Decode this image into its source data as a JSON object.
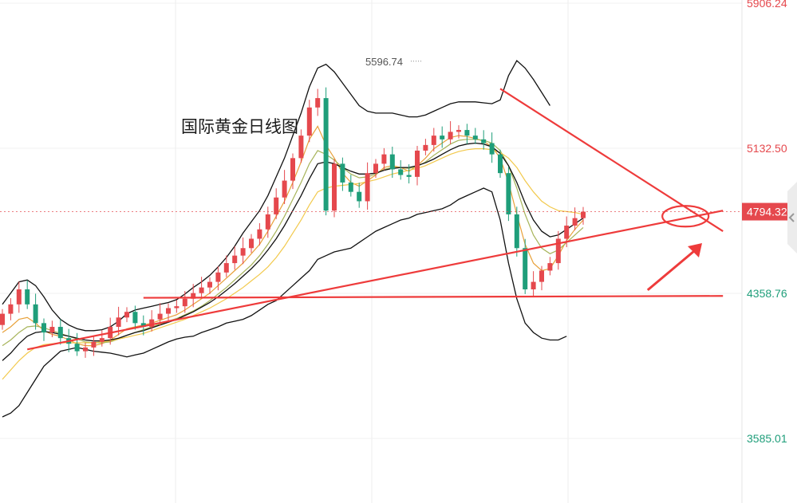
{
  "chart_data": {
    "type": "candlestick",
    "title": "国际黄金日线图",
    "xlabel": "",
    "ylabel": "",
    "y_axis_labels": [
      {
        "value": 5906.24,
        "label": "5906.24",
        "color": "#e5484d"
      },
      {
        "value": 5132.5,
        "label": "5132.50",
        "color": "#e5484d"
      },
      {
        "value": 4358.76,
        "label": "4358.76",
        "color": "#1f9e7a"
      },
      {
        "value": 3585.01,
        "label": "3585.01",
        "color": "#1f9e7a"
      }
    ],
    "current_price": {
      "value": 4794.32,
      "label": "4794.32",
      "color": "#e5484d"
    },
    "high_marker": {
      "value": 5596.74,
      "label": "5596.74"
    },
    "ylim": [
      3200,
      5906.24
    ],
    "up_color": "#e5484d",
    "down_color": "#1f9e7a",
    "closes": [
      4250,
      4300,
      4380,
      4300,
      4200,
      4150,
      4180,
      4120,
      4090,
      4050,
      4070,
      4100,
      4120,
      4180,
      4230,
      4260,
      4200,
      4180,
      4220,
      4250,
      4280,
      4290,
      4330,
      4360,
      4390,
      4420,
      4470,
      4520,
      4560,
      4600,
      4650,
      4700,
      4780,
      4870,
      4960,
      5080,
      5200,
      5350,
      5400,
      4800,
      5050,
      4950,
      4900,
      4850,
      5000,
      5050,
      5100,
      5020,
      4990,
      4980,
      5120,
      5150,
      5200,
      5180,
      5220,
      5230,
      5200,
      5180,
      5160,
      5100,
      5000,
      4780,
      4600,
      4380,
      4420,
      4480,
      4520,
      4650,
      4720,
      4760,
      4794.32
    ],
    "series": [
      {
        "name": "",
        "color": "#e8a13a",
        "values": [
          4150,
          4180,
          4220,
          4230,
          4200,
          4160,
          4140,
          4130,
          4110,
          4090,
          4080,
          4080,
          4090,
          4110,
          4140,
          4170,
          4180,
          4190,
          4200,
          4215,
          4230,
          4245,
          4270,
          4300,
          4330,
          4360,
          4400,
          4440,
          4480,
          4520,
          4570,
          4620,
          4690,
          4770,
          4850,
          4950,
          5060,
          5180,
          5250,
          5150,
          5080,
          5000,
          4950,
          4930,
          4960,
          4990,
          5030,
          5040,
          5030,
          5010,
          5040,
          5080,
          5130,
          5160,
          5190,
          5200,
          5195,
          5185,
          5170,
          5140,
          5080,
          4950,
          4780,
          4620,
          4520,
          4480,
          4490,
          4560,
          4640,
          4700,
          4750
        ]
      },
      {
        "name": "",
        "color": "#a7b45a",
        "values": [
          4080,
          4110,
          4150,
          4180,
          4185,
          4175,
          4160,
          4145,
          4130,
          4115,
          4100,
          4095,
          4095,
          4100,
          4115,
          4135,
          4150,
          4165,
          4180,
          4195,
          4210,
          4225,
          4245,
          4265,
          4290,
          4320,
          4355,
          4390,
          4430,
          4470,
          4510,
          4560,
          4620,
          4690,
          4770,
          4860,
          4950,
          5050,
          5120,
          5100,
          5070,
          5030,
          4995,
          4975,
          4980,
          4995,
          5020,
          5030,
          5030,
          5025,
          5035,
          5060,
          5095,
          5125,
          5155,
          5175,
          5180,
          5180,
          5175,
          5160,
          5120,
          5040,
          4920,
          4780,
          4670,
          4600,
          4570,
          4590,
          4630,
          4670,
          4710
        ]
      },
      {
        "name": "",
        "color": "#f2c94c",
        "values": [
          3900,
          3950,
          4000,
          4040,
          4070,
          4085,
          4090,
          4095,
          4095,
          4095,
          4095,
          4095,
          4100,
          4105,
          4115,
          4125,
          4135,
          4145,
          4160,
          4175,
          4190,
          4205,
          4220,
          4240,
          4260,
          4280,
          4305,
          4330,
          4360,
          4390,
          4425,
          4460,
          4500,
          4550,
          4610,
          4680,
          4750,
          4830,
          4900,
          4920,
          4930,
          4935,
          4940,
          4945,
          4955,
          4965,
          4980,
          4995,
          5005,
          5015,
          5025,
          5040,
          5060,
          5080,
          5100,
          5115,
          5125,
          5130,
          5130,
          5125,
          5110,
          5080,
          5030,
          4960,
          4900,
          4850,
          4820,
          4800,
          4795,
          4790,
          4780
        ]
      },
      {
        "name": "",
        "color": "#111111",
        "values": [
          4000,
          4040,
          4090,
          4130,
          4150,
          4155,
          4150,
          4140,
          4130,
          4120,
          4110,
          4105,
          4105,
          4110,
          4120,
          4135,
          4150,
          4160,
          4175,
          4190,
          4205,
          4220,
          4240,
          4260,
          4285,
          4310,
          4340,
          4375,
          4410,
          4450,
          4490,
          4535,
          4590,
          4650,
          4720,
          4800,
          4880,
          4970,
          5050,
          5060,
          5050,
          5030,
          5010,
          4995,
          4995,
          5000,
          5015,
          5025,
          5030,
          5030,
          5040,
          5055,
          5075,
          5100,
          5125,
          5145,
          5155,
          5160,
          5155,
          5140,
          5105,
          5040,
          4950,
          4840,
          4750,
          4690,
          4660,
          4670,
          4700,
          4730,
          4760
        ]
      },
      {
        "name": "",
        "color": "#111111",
        "values": [
          4300,
          4360,
          4420,
          4430,
          4400,
          4340,
          4270,
          4220,
          4190,
          4170,
          4160,
          4160,
          4165,
          4180,
          4210,
          4250,
          4270,
          4280,
          4290,
          4300,
          4310,
          4325,
          4355,
          4390,
          4420,
          4455,
          4500,
          4550,
          4610,
          4680,
          4740,
          4800,
          4880,
          4980,
          5080,
          5200,
          5320,
          5460,
          5560,
          5580,
          5540,
          5480,
          5420,
          5360,
          5330,
          5320,
          5320,
          5320,
          5310,
          5300,
          5300,
          5310,
          5330,
          5350,
          5370,
          5380,
          5380,
          5380,
          5375,
          5370,
          5390,
          5520,
          5600,
          5560,
          5500,
          5430,
          5360
        ]
      },
      {
        "name": "",
        "color": "#111111",
        "values": [
          3700,
          3720,
          3760,
          3830,
          3900,
          3970,
          4010,
          4050,
          4060,
          4070,
          4060,
          4050,
          4045,
          4040,
          4030,
          4020,
          4030,
          4040,
          4060,
          4080,
          4100,
          4115,
          4125,
          4130,
          4150,
          4165,
          4180,
          4200,
          4210,
          4220,
          4240,
          4270,
          4300,
          4320,
          4360,
          4400,
          4440,
          4480,
          4540,
          4560,
          4580,
          4590,
          4600,
          4630,
          4660,
          4690,
          4710,
          4730,
          4750,
          4760,
          4780,
          4790,
          4800,
          4810,
          4830,
          4860,
          4880,
          4900,
          4920,
          4900,
          4750,
          4520,
          4330,
          4200,
          4150,
          4120,
          4110,
          4110,
          4130
        ]
      }
    ],
    "grid": true,
    "drawings": [
      {
        "type": "trendline",
        "color": "#ee3b3b",
        "from": [
          3,
          4060
        ],
        "to": [
          83,
          4800
        ]
      },
      {
        "type": "trendline",
        "color": "#ee3b3b",
        "from": [
          17,
          4335
        ],
        "to": [
          83,
          4345
        ]
      },
      {
        "type": "trendline",
        "color": "#ee3b3b",
        "from": [
          60,
          5450
        ],
        "to": [
          83,
          4690
        ]
      },
      {
        "type": "ellipse",
        "color": "#ee3b3b",
        "center": [
          78,
          4770
        ]
      },
      {
        "type": "arrow",
        "color": "#ee3b3b",
        "from": [
          72,
          4355
        ],
        "to": [
          80,
          4720
        ]
      }
    ]
  }
}
